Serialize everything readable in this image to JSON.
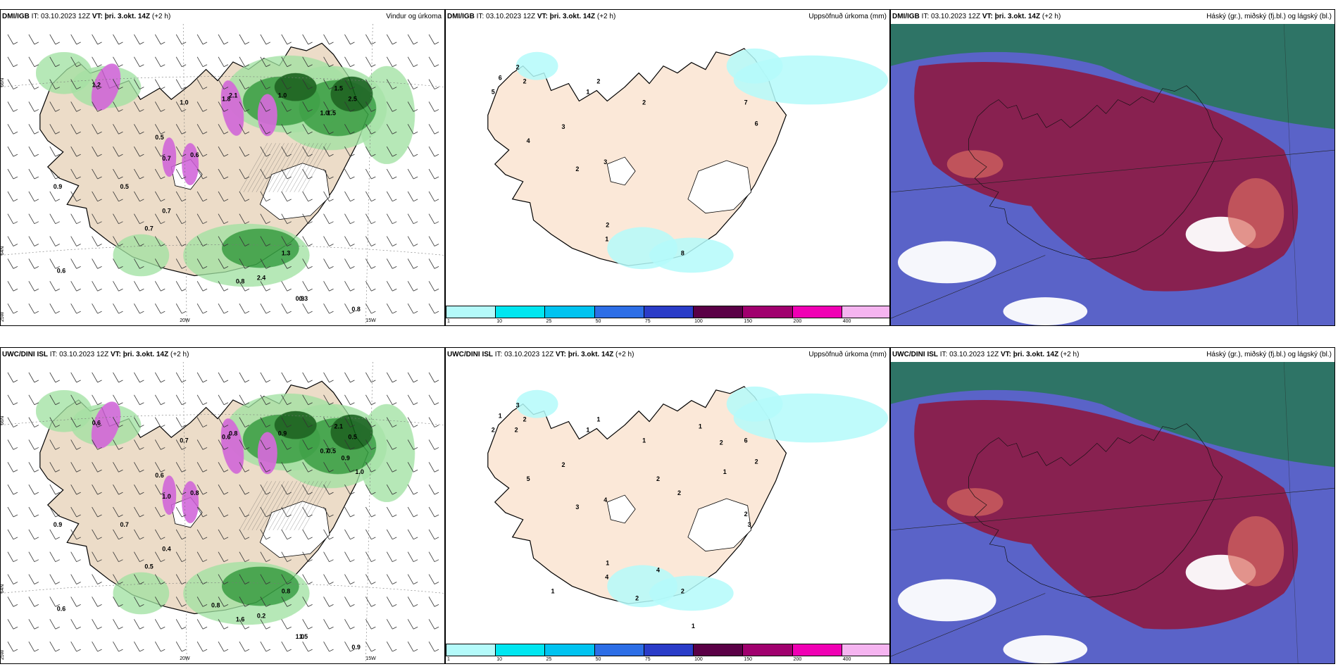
{
  "common": {
    "it_prefix": "IT:",
    "it_value": "03.10.2023 12Z",
    "vt_prefix": "VT:",
    "vt_value": "þri. 3.okt. 14Z",
    "lead": "(+2 h)"
  },
  "rows": [
    {
      "model": "DMI/IGB"
    },
    {
      "model": "UWC/DINI ISL"
    }
  ],
  "titles": {
    "wind": "Vindur og úrkoma",
    "accum": "Uppsöfnuð úrkoma (mm)",
    "cloud": "Háský (gr.), miðský (fj.bl.) og lágský (bl.)"
  },
  "axes": {
    "lat66": "66N",
    "lat64": "64N",
    "lon25": "25W",
    "lon20": "20W",
    "lon15": "15W"
  },
  "colorbar": {
    "ticks": [
      "1",
      "10",
      "25",
      "50",
      "75",
      "100",
      "150",
      "200",
      "400"
    ],
    "colors": [
      "#b4fafa",
      "#00e6f0",
      "#00c3f0",
      "#2d6ee6",
      "#2a3cc8",
      "#5a0046",
      "#a0006e",
      "#f000b4",
      "#f5b4f0"
    ]
  },
  "labels": {
    "wind_top": [
      "1.2",
      "1.0",
      "2.5",
      "1.0",
      "1.5",
      "0.5",
      "0.6",
      "0.7",
      "0.5",
      "0.9",
      "0.7",
      "0.7",
      "0.6",
      "1.3",
      "0.8",
      "2.4",
      "0.3",
      "1.0",
      "0.9",
      "0.8",
      "1.8",
      "2.1",
      "1.5"
    ],
    "wind_bot": [
      "0.6",
      "0.7",
      "0.5",
      "0.9",
      "0.5",
      "0.6",
      "0.8",
      "1.0",
      "0.7",
      "0.9",
      "0.4",
      "0.5",
      "0.6",
      "0.8",
      "1.6",
      "0.2",
      "1.5",
      "0.7",
      "1.0",
      "0.9",
      "0.6",
      "0.8",
      "2.1",
      "1.0",
      "0.9",
      "0.8"
    ],
    "accum_top": [
      "6",
      "2",
      "5",
      "2",
      "1",
      "2",
      "2",
      "2",
      "7",
      "6",
      "3",
      "3",
      "4",
      "2",
      "1",
      "8"
    ],
    "accum_bot": [
      "1",
      "3",
      "2",
      "2",
      "1",
      "1",
      "1",
      "1",
      "6",
      "2",
      "2",
      "4",
      "5",
      "3",
      "4",
      "2",
      "2",
      "1",
      "2",
      "1",
      "2",
      "1",
      "2",
      "2",
      "3",
      "4",
      "2",
      "1"
    ]
  }
}
